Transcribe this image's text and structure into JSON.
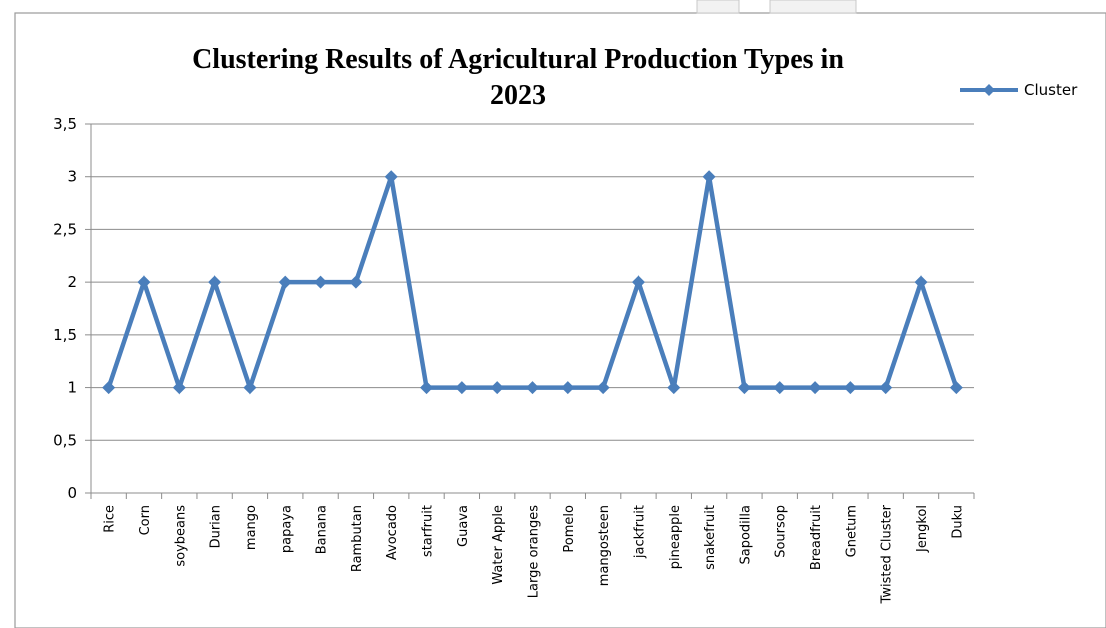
{
  "chart_data": {
    "type": "line",
    "title_line1": "Clustering Results of Agricultural Production Types in",
    "title_line2": "2023",
    "xlabel": "",
    "ylabel": "",
    "ylim": [
      0,
      3.5
    ],
    "y_ticks": [
      "0",
      "0,5",
      "1",
      "1,5",
      "2",
      "2,5",
      "3",
      "3,5"
    ],
    "grid": "horizontal",
    "legend_position": "right",
    "categories": [
      "Rice",
      "Corn",
      "soybeans",
      "Durian",
      "mango",
      "papaya",
      "Banana",
      "Rambutan",
      "Avocado",
      "starfruit",
      "Guava",
      "Water Apple",
      "Large oranges",
      "Pomelo",
      "mangosteen",
      "jackfruit",
      "pineapple",
      "snakefruit",
      "Sapodilla",
      "Soursop",
      "Breadfruit",
      "Gnetum",
      "Twisted Cluster",
      "Jengkol",
      "Duku"
    ],
    "series": [
      {
        "name": "Cluster",
        "color": "#4a7ebb",
        "values": [
          1,
          2,
          1,
          2,
          1,
          2,
          2,
          2,
          3,
          1,
          1,
          1,
          1,
          1,
          1,
          2,
          1,
          3,
          1,
          1,
          1,
          1,
          1,
          2,
          1
        ]
      }
    ]
  }
}
